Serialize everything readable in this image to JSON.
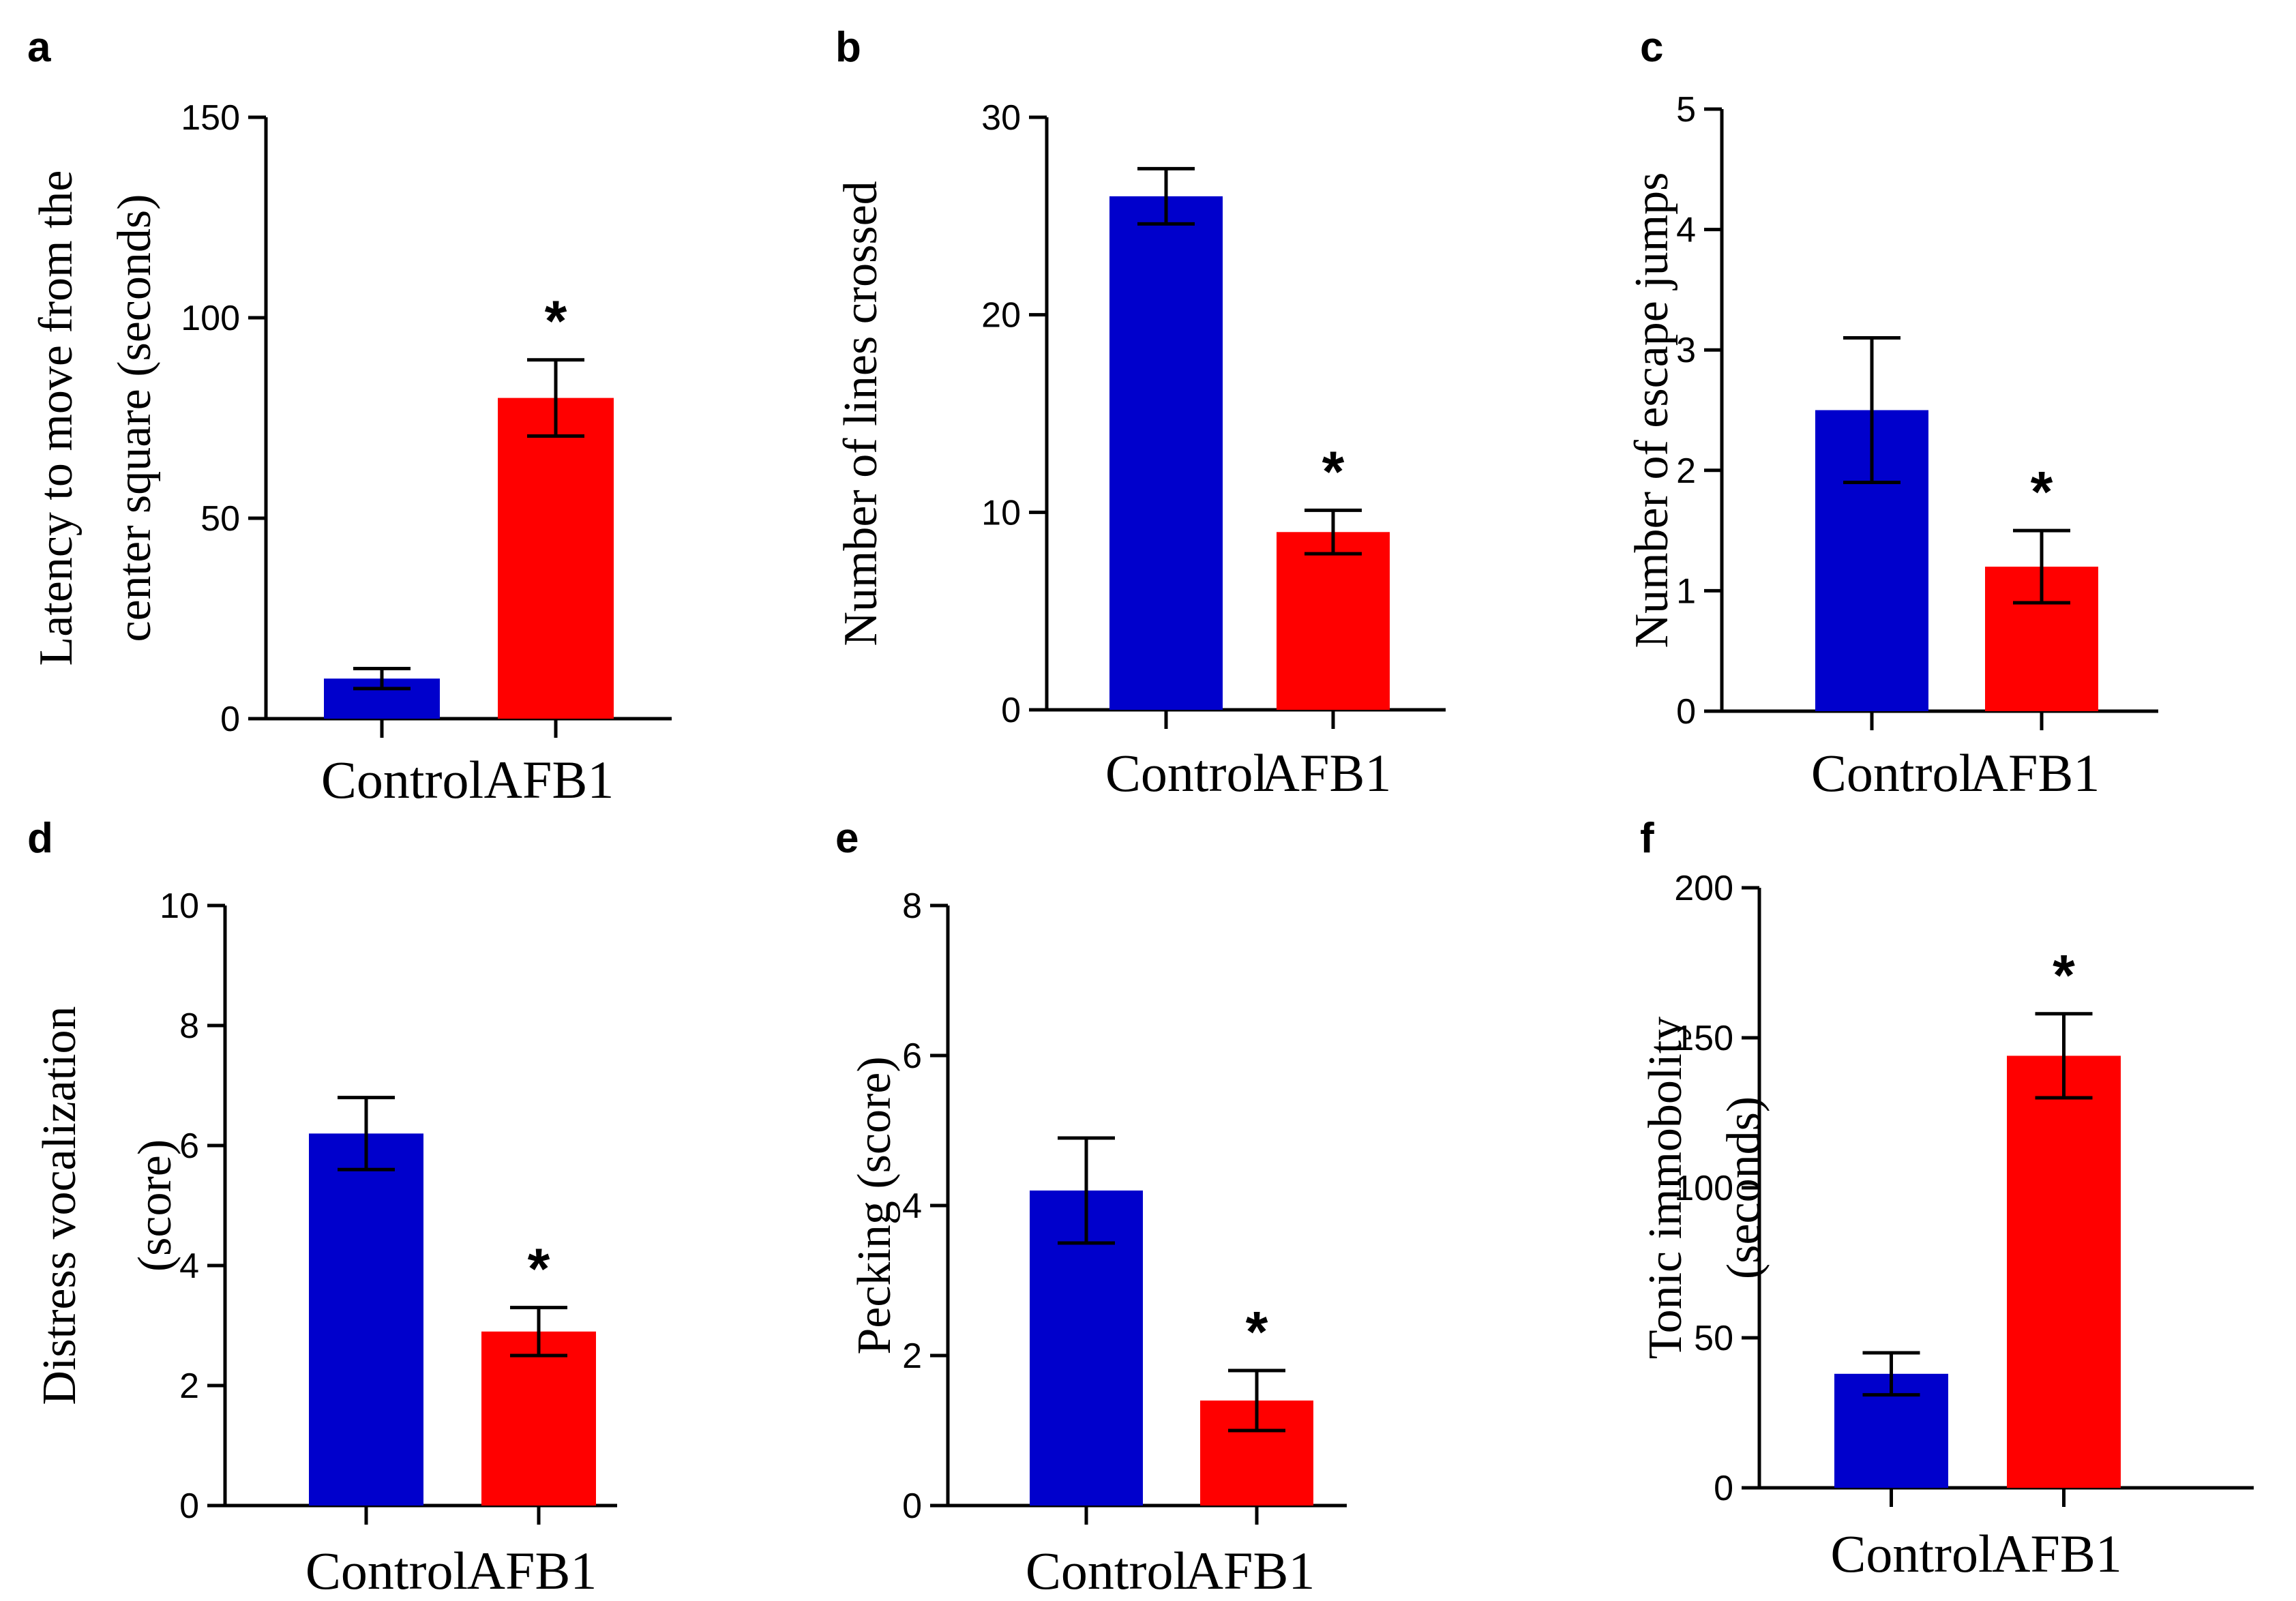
{
  "chart_data": [
    {
      "panel": "a",
      "type": "bar",
      "categories": [
        "Control",
        "AFB1"
      ],
      "values": [
        10,
        80
      ],
      "errors": [
        2.5,
        9.5
      ],
      "colors": [
        "#0000cc",
        "#ff0000"
      ],
      "significance": [
        "",
        "*"
      ],
      "ylabel": [
        "Latency to move from the",
        "center square (seconds)"
      ],
      "ylim": [
        0,
        150
      ],
      "yticks": [
        0,
        50,
        100,
        150
      ]
    },
    {
      "panel": "b",
      "type": "bar",
      "categories": [
        "Control",
        "AFB1"
      ],
      "values": [
        26,
        9
      ],
      "errors": [
        1.4,
        1.1
      ],
      "colors": [
        "#0000cc",
        "#ff0000"
      ],
      "significance": [
        "",
        "*"
      ],
      "ylabel": [
        "Number of lines crossed"
      ],
      "ylim": [
        0,
        30
      ],
      "yticks": [
        0,
        10,
        20,
        30
      ]
    },
    {
      "panel": "c",
      "type": "bar",
      "categories": [
        "Control",
        "AFB1"
      ],
      "values": [
        2.5,
        1.2
      ],
      "errors": [
        0.6,
        0.3
      ],
      "colors": [
        "#0000cc",
        "#ff0000"
      ],
      "significance": [
        "",
        "*"
      ],
      "ylabel": [
        "Number of escape jumps"
      ],
      "ylim": [
        0,
        5
      ],
      "yticks": [
        0,
        1,
        2,
        3,
        4,
        5
      ]
    },
    {
      "panel": "d",
      "type": "bar",
      "categories": [
        "Control",
        "AFB1"
      ],
      "values": [
        6.2,
        2.9
      ],
      "errors": [
        0.6,
        0.4
      ],
      "colors": [
        "#0000cc",
        "#ff0000"
      ],
      "significance": [
        "",
        "*"
      ],
      "ylabel": [
        "Distress vocalization",
        "(score)"
      ],
      "ylim": [
        0,
        10
      ],
      "yticks": [
        0,
        2,
        4,
        6,
        8,
        10
      ]
    },
    {
      "panel": "e",
      "type": "bar",
      "categories": [
        "Control",
        "AFB1"
      ],
      "values": [
        4.2,
        1.4
      ],
      "errors": [
        0.7,
        0.4
      ],
      "colors": [
        "#0000cc",
        "#ff0000"
      ],
      "significance": [
        "",
        "*"
      ],
      "ylabel": [
        "Pecking (score)"
      ],
      "ylim": [
        0,
        8
      ],
      "yticks": [
        0,
        2,
        4,
        6,
        8
      ]
    },
    {
      "panel": "f",
      "type": "bar",
      "categories": [
        "Control",
        "AFB1"
      ],
      "values": [
        38,
        144
      ],
      "errors": [
        7,
        14
      ],
      "colors": [
        "#0000cc",
        "#ff0000"
      ],
      "significance": [
        "",
        "*"
      ],
      "ylabel": [
        "Tonic immobolity",
        "(seconds)"
      ],
      "ylim": [
        0,
        200
      ],
      "yticks": [
        0,
        50,
        100,
        150,
        200
      ]
    }
  ]
}
